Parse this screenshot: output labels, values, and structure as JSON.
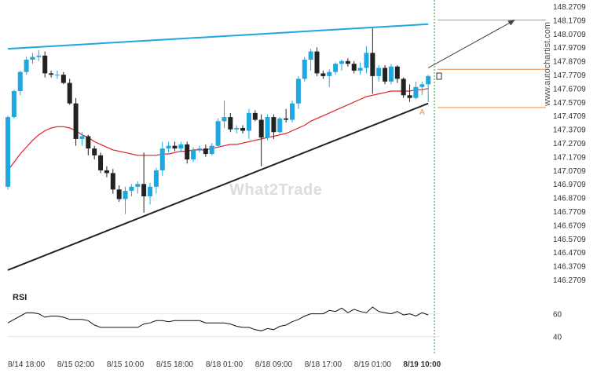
{
  "watermark": "What2Trade",
  "side_text": "www.autochartist.com",
  "point_label": "A",
  "colors": {
    "up": "#1fa8e0",
    "down": "#222222",
    "ma": "#e02020",
    "resistance": "#1fa8e0",
    "support": "#222222",
    "level": "#f08a40",
    "projection": "#444444",
    "rsi": "#111111"
  },
  "chart_data": {
    "type": "candlestick",
    "y_ticks": [
      "148.2709",
      "148.1709",
      "148.0709",
      "147.9709",
      "147.8709",
      "147.7709",
      "147.6709",
      "147.5709",
      "147.4709",
      "147.3709",
      "147.2709",
      "147.1709",
      "147.0709",
      "146.9709",
      "146.8709",
      "146.7709",
      "146.6709",
      "146.5709",
      "146.4709",
      "146.3709",
      "146.2709"
    ],
    "ylim": [
      146.2709,
      148.2709
    ],
    "x_ticks": [
      "8/14 18:00",
      "8/15 02:00",
      "8/15 10:00",
      "8/15 18:00",
      "8/18 01:00",
      "8/18 09:00",
      "8/18 17:00",
      "8/19 01:00",
      "8/19 10:00"
    ],
    "x_tick_index": [
      3,
      11,
      19,
      27,
      35,
      43,
      51,
      59,
      67
    ],
    "candles": [
      [
        146.95,
        147.47,
        146.93,
        147.46
      ],
      [
        147.46,
        147.66,
        147.45,
        147.65
      ],
      [
        147.65,
        147.8,
        147.62,
        147.79
      ],
      [
        147.79,
        147.9,
        147.77,
        147.88
      ],
      [
        147.88,
        147.93,
        147.85,
        147.9
      ],
      [
        147.9,
        147.95,
        147.87,
        147.91
      ],
      [
        147.91,
        147.94,
        147.75,
        147.78
      ],
      [
        147.78,
        147.8,
        147.75,
        147.77
      ],
      [
        147.77,
        147.8,
        147.74,
        147.77
      ],
      [
        147.77,
        147.79,
        147.7,
        147.71
      ],
      [
        147.71,
        147.74,
        147.55,
        147.56
      ],
      [
        147.56,
        147.6,
        147.25,
        147.3
      ],
      [
        147.3,
        147.35,
        147.25,
        147.32
      ],
      [
        147.32,
        147.33,
        147.18,
        147.23
      ],
      [
        147.23,
        147.25,
        147.15,
        147.18
      ],
      [
        147.18,
        147.2,
        147.05,
        147.07
      ],
      [
        147.07,
        147.1,
        147.02,
        147.05
      ],
      [
        147.05,
        147.08,
        146.9,
        146.93
      ],
      [
        146.93,
        146.96,
        146.84,
        146.86
      ],
      [
        146.86,
        146.95,
        146.75,
        146.92
      ],
      [
        146.92,
        146.97,
        146.88,
        146.95
      ],
      [
        146.95,
        146.99,
        146.9,
        146.97
      ],
      [
        146.97,
        147.2,
        146.76,
        146.88
      ],
      [
        146.88,
        146.98,
        146.82,
        146.95
      ],
      [
        146.95,
        147.09,
        146.9,
        147.07
      ],
      [
        147.07,
        147.28,
        147.03,
        147.23
      ],
      [
        147.23,
        147.28,
        147.2,
        147.25
      ],
      [
        147.25,
        147.28,
        147.21,
        147.23
      ],
      [
        147.23,
        147.28,
        147.2,
        147.26
      ],
      [
        147.26,
        147.28,
        147.12,
        147.15
      ],
      [
        147.15,
        147.24,
        147.13,
        147.22
      ],
      [
        147.22,
        147.25,
        147.2,
        147.23
      ],
      [
        147.23,
        147.26,
        147.17,
        147.19
      ],
      [
        147.19,
        147.27,
        147.18,
        147.25
      ],
      [
        147.25,
        147.45,
        147.24,
        147.43
      ],
      [
        147.43,
        147.58,
        147.38,
        147.46
      ],
      [
        147.46,
        147.49,
        147.35,
        147.37
      ],
      [
        147.37,
        147.4,
        147.34,
        147.38
      ],
      [
        147.38,
        147.4,
        147.34,
        147.36
      ],
      [
        147.36,
        147.52,
        147.3,
        147.49
      ],
      [
        147.49,
        147.51,
        147.43,
        147.44
      ],
      [
        147.44,
        147.48,
        147.1,
        147.31
      ],
      [
        147.31,
        147.48,
        147.29,
        147.46
      ],
      [
        147.46,
        147.48,
        147.3,
        147.35
      ],
      [
        147.35,
        147.46,
        147.34,
        147.45
      ],
      [
        147.45,
        147.52,
        147.42,
        147.44
      ],
      [
        147.44,
        147.58,
        147.42,
        147.56
      ],
      [
        147.56,
        147.76,
        147.52,
        147.74
      ],
      [
        147.74,
        147.9,
        147.72,
        147.88
      ],
      [
        147.88,
        147.96,
        147.8,
        147.94
      ],
      [
        147.94,
        147.97,
        147.76,
        147.78
      ],
      [
        147.78,
        147.8,
        147.74,
        147.76
      ],
      [
        147.76,
        147.81,
        147.68,
        147.79
      ],
      [
        147.79,
        147.86,
        147.77,
        147.85
      ],
      [
        147.85,
        147.88,
        147.8,
        147.87
      ],
      [
        147.87,
        147.89,
        147.83,
        147.85
      ],
      [
        147.85,
        147.87,
        147.78,
        147.8
      ],
      [
        147.8,
        147.86,
        147.77,
        147.82
      ],
      [
        147.82,
        147.98,
        147.78,
        147.93
      ],
      [
        147.93,
        148.11,
        147.63,
        147.76
      ],
      [
        147.76,
        147.84,
        147.72,
        147.82
      ],
      [
        147.82,
        147.84,
        147.7,
        147.72
      ],
      [
        147.72,
        147.85,
        147.7,
        147.83
      ],
      [
        147.83,
        147.84,
        147.71,
        147.74
      ],
      [
        147.74,
        147.75,
        147.6,
        147.62
      ],
      [
        147.62,
        147.7,
        147.57,
        147.6
      ],
      [
        147.6,
        147.72,
        147.59,
        147.68
      ],
      [
        147.68,
        147.72,
        147.62,
        147.7
      ],
      [
        147.7,
        147.77,
        147.57,
        147.76
      ]
    ],
    "ma": [
      147.07,
      147.13,
      147.19,
      147.24,
      147.29,
      147.33,
      147.36,
      147.38,
      147.39,
      147.39,
      147.38,
      147.36,
      147.33,
      147.31,
      147.28,
      147.26,
      147.24,
      147.22,
      147.21,
      147.2,
      147.19,
      147.18,
      147.18,
      147.18,
      147.18,
      147.19,
      147.19,
      147.2,
      147.21,
      147.21,
      147.22,
      147.22,
      147.22,
      147.23,
      147.24,
      147.25,
      147.26,
      147.26,
      147.27,
      147.28,
      147.29,
      147.3,
      147.31,
      147.32,
      147.33,
      147.34,
      147.36,
      147.38,
      147.4,
      147.43,
      147.45,
      147.47,
      147.49,
      147.51,
      147.53,
      147.55,
      147.57,
      147.59,
      147.61,
      147.62,
      147.63,
      147.64,
      147.65,
      147.65,
      147.65,
      147.65,
      147.66,
      147.66,
      147.67
    ],
    "resistance": {
      "x": [
        0,
        68
      ],
      "y": [
        147.96,
        148.14
      ]
    },
    "support": {
      "x": [
        0,
        68
      ],
      "y": [
        146.34,
        147.56
      ]
    },
    "levels": [
      148.17,
      147.81,
      147.53
    ],
    "projection": {
      "x": [
        68,
        82
      ],
      "y": [
        147.82,
        148.17
      ]
    },
    "rsi_label": "RSI",
    "rsi_ticks": [
      60,
      40
    ],
    "rsi_ylim": [
      32,
      75
    ],
    "rsi": [
      52,
      55,
      58,
      61,
      61,
      60,
      57,
      58,
      58,
      57,
      55,
      55,
      55,
      54,
      50,
      48,
      48,
      48,
      48,
      48,
      48,
      48,
      51,
      52,
      54,
      54,
      53,
      54,
      54,
      54,
      54,
      54,
      52,
      52,
      52,
      52,
      51,
      49,
      48,
      48,
      46,
      45,
      47,
      46,
      49,
      50,
      53,
      55,
      58,
      60,
      60,
      60,
      63,
      62,
      65,
      61,
      64,
      62,
      61,
      66,
      62,
      61,
      60,
      62,
      59,
      60,
      58,
      61,
      59
    ]
  }
}
